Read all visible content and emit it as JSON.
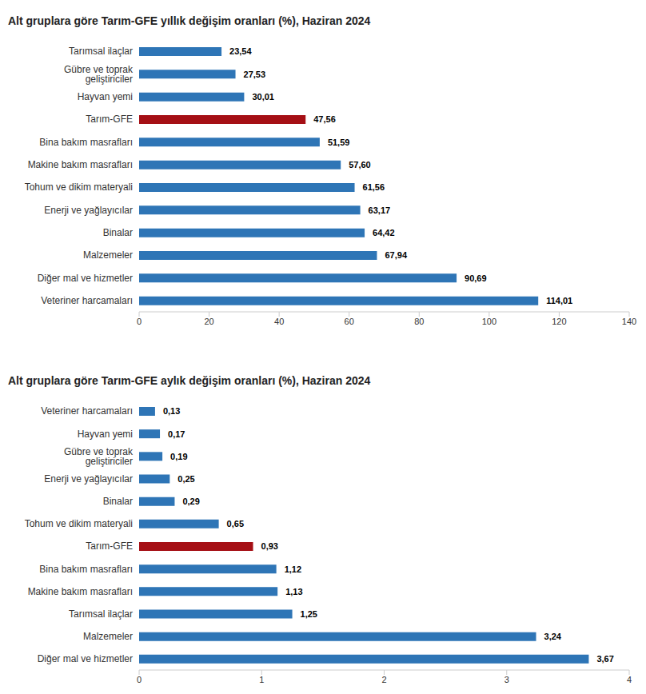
{
  "chart_data": [
    {
      "type": "bar",
      "title": "Alt gruplara göre Tarım-GFE yıllık değişim oranları (%), Haziran 2024",
      "orientation": "horizontal",
      "categories": [
        "Tarımsal ilaçlar",
        "Gübre ve toprak geliştiriciler",
        "Hayvan yemi",
        "Tarım-GFE",
        "Bina bakım masrafları",
        "Makine bakım masrafları",
        "Tohum ve dikim materyali",
        "Enerji  ve yağlayıcılar",
        "Binalar",
        "Malzemeler",
        "Diğer mal ve hizmetler",
        "Veteriner harcamaları"
      ],
      "values": [
        23.54,
        27.53,
        30.01,
        47.56,
        51.59,
        57.6,
        61.56,
        63.17,
        64.42,
        67.94,
        90.69,
        114.01
      ],
      "value_labels": [
        "23,54",
        "27,53",
        "30,01",
        "47,56",
        "51,59",
        "57,60",
        "61,56",
        "63,17",
        "64,42",
        "67,94",
        "90,69",
        "114,01"
      ],
      "colors": [
        "#2e75b6",
        "#2e75b6",
        "#2e75b6",
        "#a50f15",
        "#2e75b6",
        "#2e75b6",
        "#2e75b6",
        "#2e75b6",
        "#2e75b6",
        "#2e75b6",
        "#2e75b6",
        "#2e75b6"
      ],
      "xlim": [
        0,
        140
      ],
      "xticks": [
        0,
        20,
        40,
        60,
        80,
        100,
        120,
        140
      ],
      "data_labels": true,
      "grid": false
    },
    {
      "type": "bar",
      "title": "Alt gruplara göre Tarım-GFE aylık değişim oranları (%), Haziran 2024",
      "orientation": "horizontal",
      "categories": [
        "Veteriner harcamaları",
        "Hayvan yemi",
        "Gübre ve toprak geliştiriciler",
        "Enerji  ve yağlayıcılar",
        "Binalar",
        "Tohum ve dikim materyali",
        "Tarım-GFE",
        "Bina bakım masrafları",
        "Makine bakım masrafları",
        "Tarımsal ilaçlar",
        "Malzemeler",
        "Diğer mal ve hizmetler"
      ],
      "values": [
        0.13,
        0.17,
        0.19,
        0.25,
        0.29,
        0.65,
        0.93,
        1.12,
        1.13,
        1.25,
        3.24,
        3.67
      ],
      "value_labels": [
        "0,13",
        "0,17",
        "0,19",
        "0,25",
        "0,29",
        "0,65",
        "0,93",
        "1,12",
        "1,13",
        "1,25",
        "3,24",
        "3,67"
      ],
      "colors": [
        "#2e75b6",
        "#2e75b6",
        "#2e75b6",
        "#2e75b6",
        "#2e75b6",
        "#2e75b6",
        "#a50f15",
        "#2e75b6",
        "#2e75b6",
        "#2e75b6",
        "#2e75b6",
        "#2e75b6"
      ],
      "xlim": [
        0,
        4
      ],
      "xticks": [
        0,
        1,
        2,
        3,
        4
      ],
      "data_labels": true,
      "grid": false
    }
  ]
}
